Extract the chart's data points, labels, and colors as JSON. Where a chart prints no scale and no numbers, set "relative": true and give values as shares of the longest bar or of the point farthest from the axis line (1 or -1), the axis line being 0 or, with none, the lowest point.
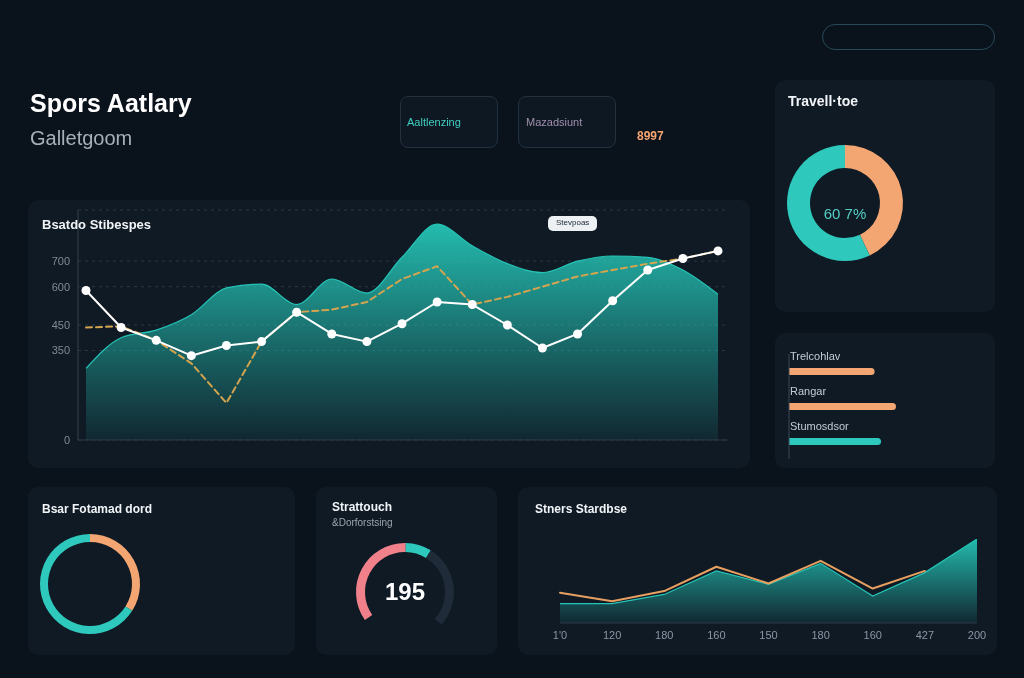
{
  "chart_data": [
    {
      "type": "area",
      "title": "Bsatdo Stibespes",
      "categories": [
        null,
        null,
        null,
        null,
        null,
        null,
        null,
        null,
        null,
        null,
        null,
        null,
        null,
        null,
        null,
        null,
        null,
        null,
        null
      ],
      "ylim": [
        0,
        900
      ],
      "yticks": [
        0,
        350,
        450,
        600,
        700
      ],
      "grid": "y",
      "series": [
        {
          "type": "area",
          "color": "#25c3b5",
          "values": [
            280,
            400,
            430,
            490,
            595,
            610,
            530,
            630,
            575,
            715,
            845,
            760,
            690,
            655,
            700,
            720,
            715,
            665,
            570
          ]
        },
        {
          "type": "line",
          "color": "#d4a44e",
          "line_style": "dashed",
          "values": [
            440,
            445,
            390,
            300,
            145,
            385,
            500,
            510,
            540,
            630,
            680,
            530,
            560,
            600,
            640,
            665,
            690,
            710,
            740
          ]
        },
        {
          "type": "line",
          "color": "#ffffff",
          "marker": "circle",
          "values": [
            585,
            440,
            390,
            330,
            370,
            385,
            500,
            415,
            385,
            455,
            540,
            530,
            450,
            360,
            415,
            545,
            665,
            710,
            740
          ]
        }
      ],
      "annotations": [
        "Spors Aatlary",
        "Galletgoom",
        "Aaltlenzing",
        "Mazadsiunt",
        "8997",
        "Stevpoas"
      ]
    },
    {
      "type": "donut",
      "title": "Travell·toe",
      "categories": [
        null,
        null
      ],
      "values": [
        43,
        57
      ],
      "colors": [
        "#f4a672",
        "#2ec9bc"
      ],
      "annotations": [
        "60 7%"
      ]
    },
    {
      "type": "bar",
      "orientation": "horizontal",
      "relative": true,
      "categories": [
        "Trelcohlav",
        "Rangar",
        "Stumosdsor"
      ],
      "values": [
        0.8,
        1,
        0.86
      ],
      "colors": [
        "#f4a672",
        "#f4a672",
        "#2ec9bc"
      ]
    },
    {
      "type": "donut",
      "title": "Bsar Fotamad dord",
      "categories": [
        null,
        null
      ],
      "values": [
        34,
        66
      ],
      "colors": [
        "#f4a672",
        "#2ec9bc"
      ]
    },
    {
      "type": "donut",
      "title": "Strattouch",
      "subtitle": "&Dorforstsing",
      "categories": [
        null,
        null,
        null
      ],
      "values": [
        49,
        12,
        39
      ],
      "colors": [
        "#f0808a",
        "#2ec9bc",
        "#1f2b39"
      ],
      "annotations": [
        "195"
      ]
    },
    {
      "type": "area",
      "title": "Stners Stardbse",
      "relative": true,
      "categories": [
        "1'0",
        "120",
        "180",
        "160",
        "150",
        "180",
        "160",
        "427",
        "200"
      ],
      "series": [
        {
          "type": "area",
          "color": "#25c3b5",
          "values": [
            0.23,
            0.23,
            0.34,
            0.62,
            0.46,
            0.71,
            0.32,
            0.6,
            1
          ]
        },
        {
          "type": "line",
          "color": "#e8a060",
          "values": [
            0.36,
            0.26,
            0.38,
            0.67,
            0.47,
            0.74,
            0.41,
            0.62,
            null
          ]
        }
      ]
    }
  ]
}
